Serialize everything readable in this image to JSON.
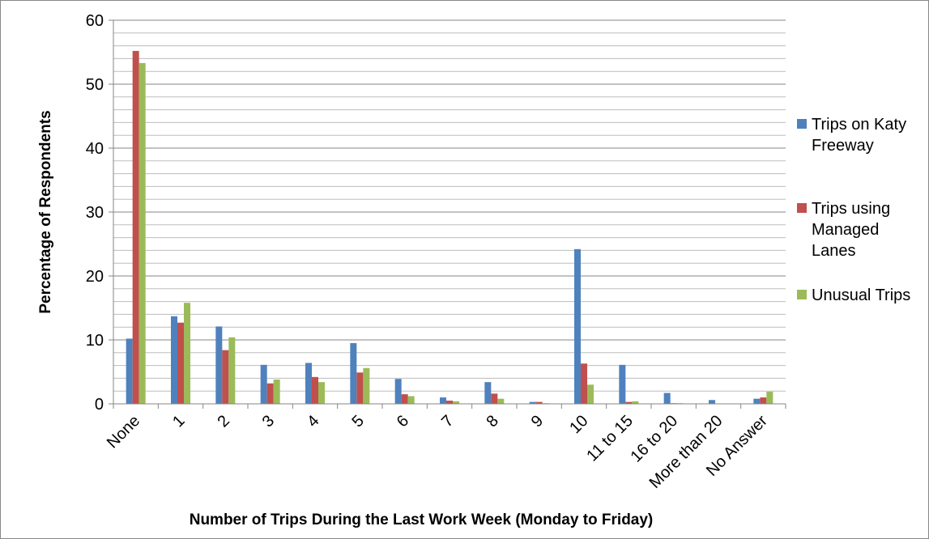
{
  "chart_data": {
    "type": "bar",
    "x_label": "Number of Trips During the Last Work Week (Monday to Friday)",
    "y_label": "Percentage of Respondents",
    "categories": [
      "None",
      "1",
      "2",
      "3",
      "4",
      "5",
      "6",
      "7",
      "8",
      "9",
      "10",
      "11 to 15",
      "16 to 20",
      "More than 20",
      "No Answer"
    ],
    "series": [
      {
        "name": "Trips on Katy Freeway",
        "color": "#4f81bd",
        "values": [
          10.2,
          13.7,
          12.1,
          6.1,
          6.4,
          9.5,
          3.9,
          1.0,
          3.4,
          0.3,
          24.2,
          6.1,
          1.7,
          0.6,
          0.8
        ]
      },
      {
        "name": "Trips using Managed Lanes",
        "color": "#c0504d",
        "values": [
          55.2,
          12.7,
          8.4,
          3.2,
          4.2,
          4.9,
          1.5,
          0.5,
          1.6,
          0.3,
          6.3,
          0.3,
          0.1,
          0,
          1.0
        ]
      },
      {
        "name": "Unusual Trips",
        "color": "#9bbb59",
        "values": [
          53.3,
          15.8,
          10.4,
          3.8,
          3.4,
          5.6,
          1.2,
          0.4,
          0.8,
          0.1,
          3.0,
          0.4,
          0.1,
          0,
          1.9
        ]
      }
    ],
    "ylim": [
      0,
      60
    ],
    "yticks": [
      0,
      10,
      20,
      30,
      40,
      50,
      60
    ],
    "y_minor_ticks": [
      2,
      4,
      6,
      8,
      12,
      14,
      16,
      18,
      22,
      24,
      26,
      28,
      32,
      34,
      36,
      38,
      42,
      44,
      46,
      48,
      52,
      54,
      56,
      58
    ],
    "grid": true,
    "legend": "right"
  }
}
